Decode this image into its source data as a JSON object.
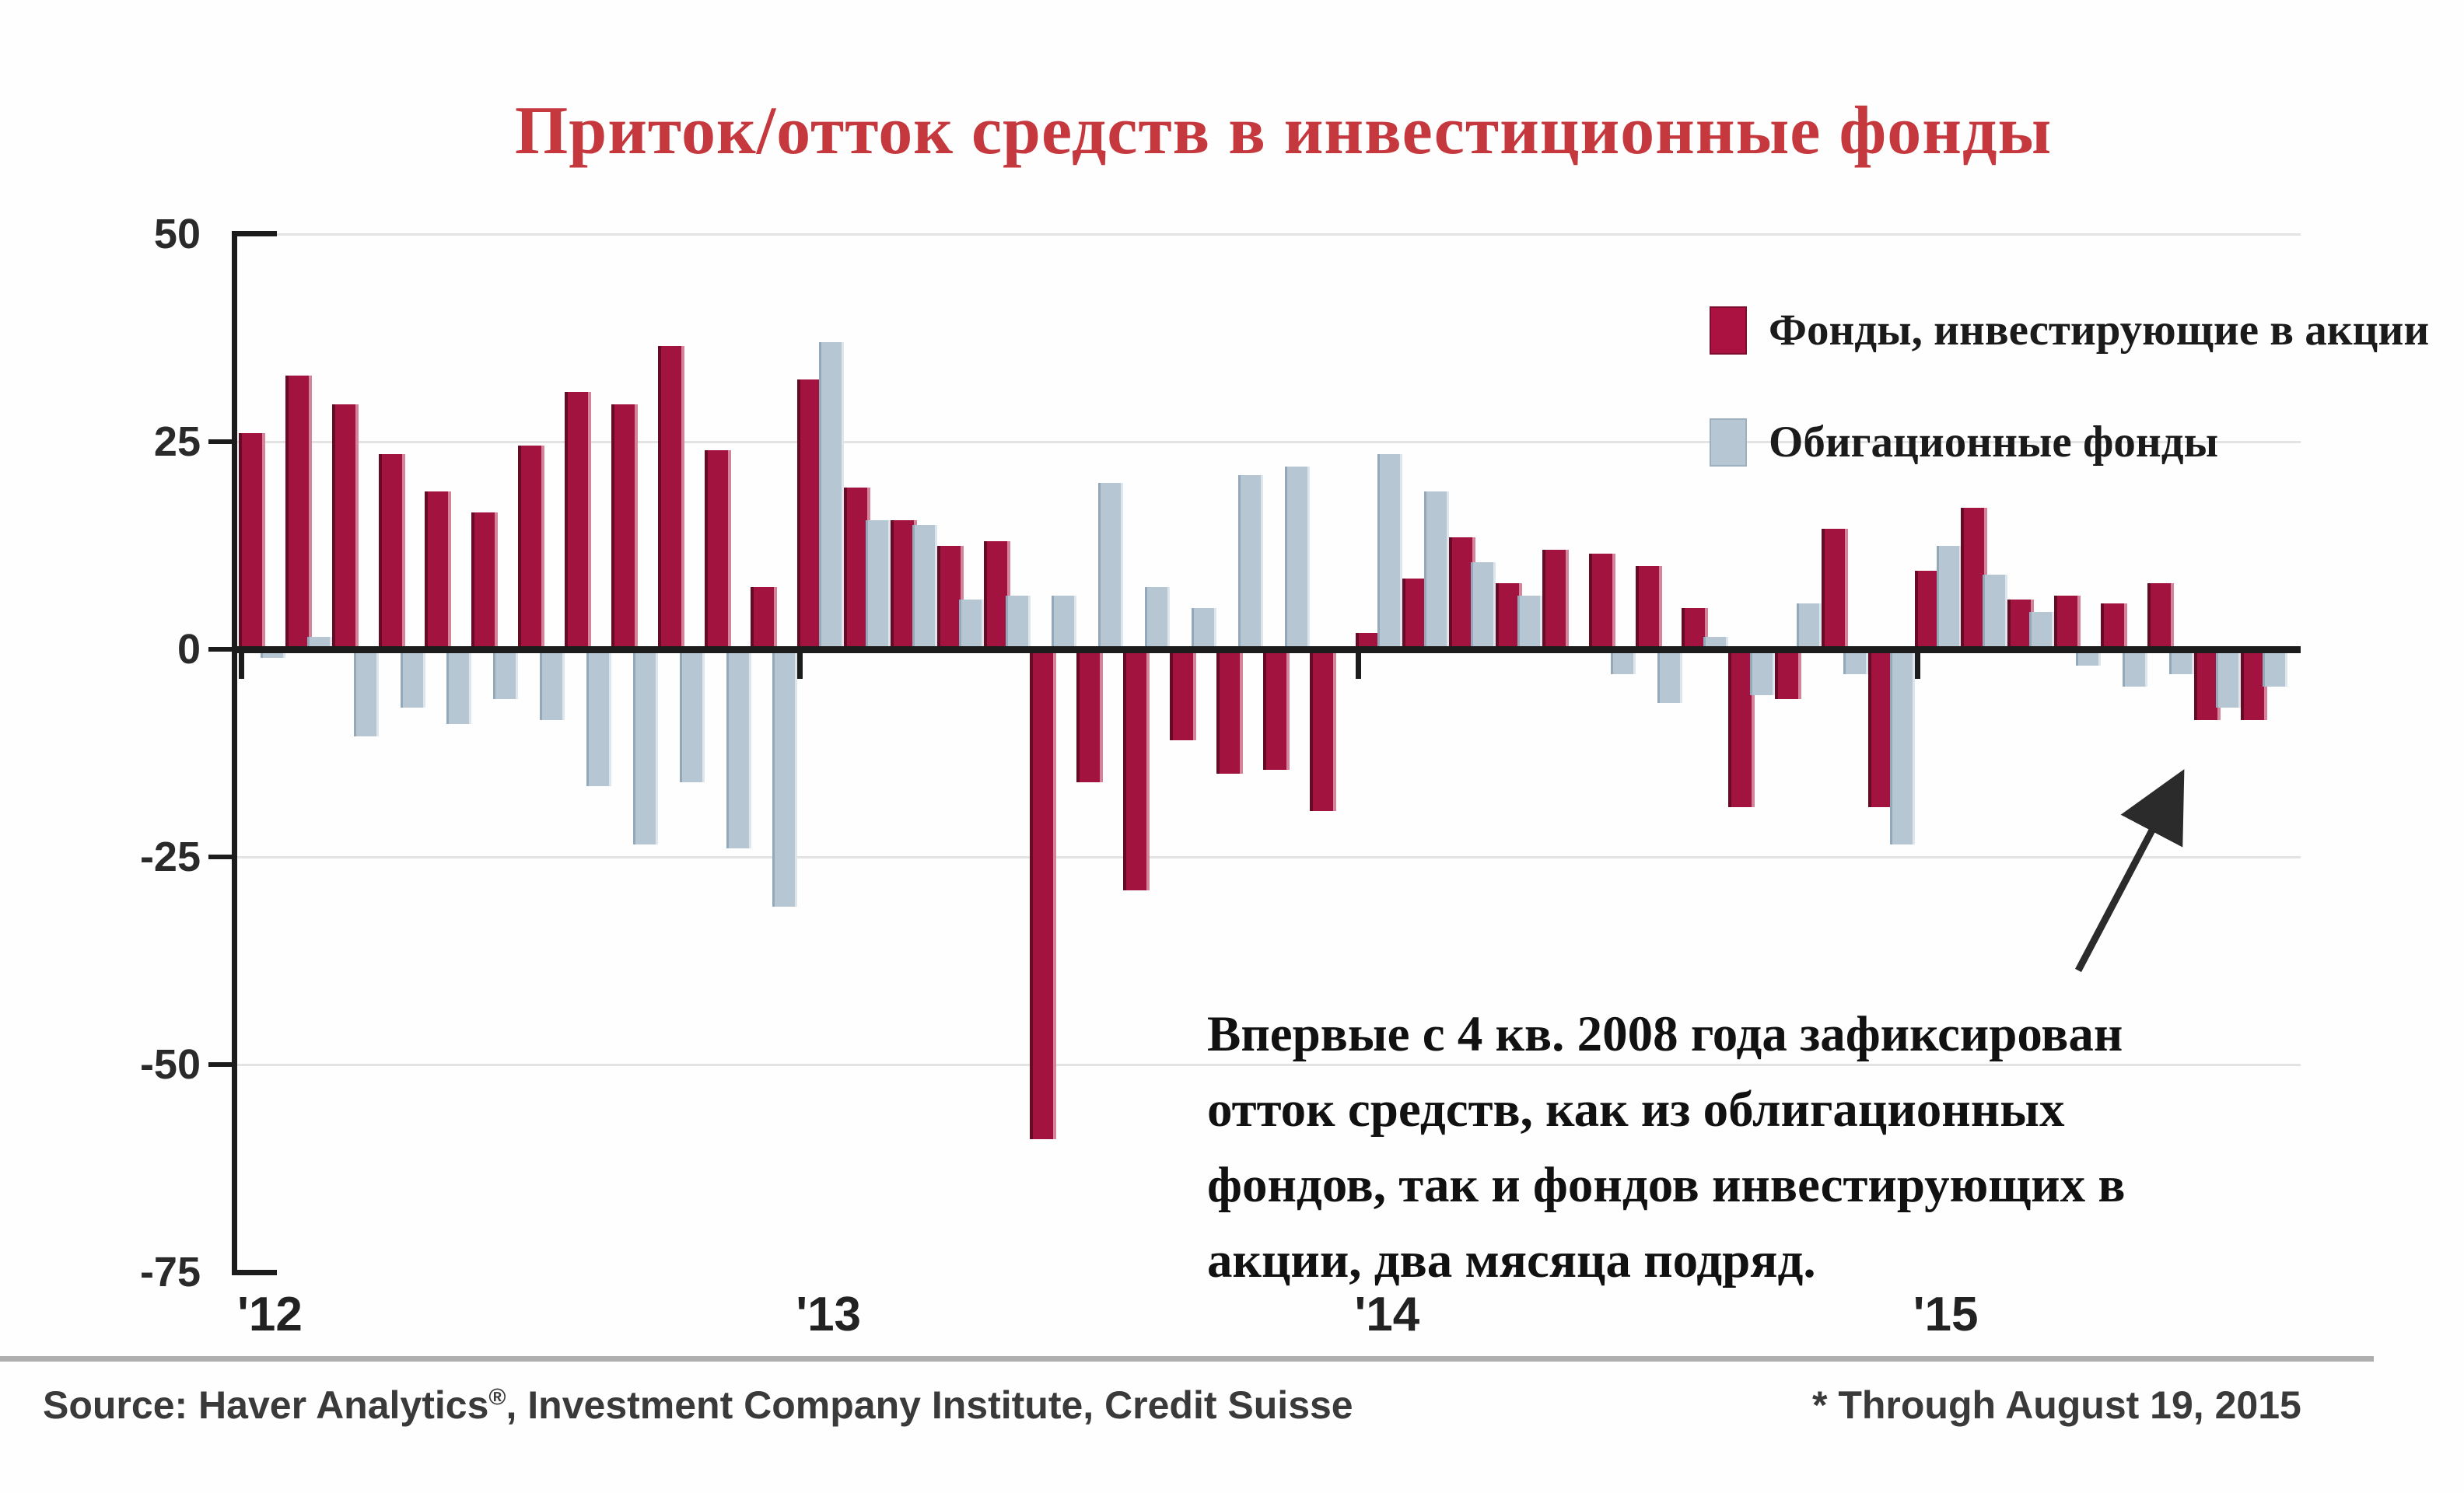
{
  "title": "Приток/отток средств в инвестиционные фонды",
  "legend": {
    "equity_label": "Фонды, инвестирующие в акции",
    "bond_label": "Обигационные фонды"
  },
  "annotation": {
    "lines": [
      "Впервые с 4 кв. 2008 года зафиксирован",
      "отток средств, как из облигационных",
      "фондов, так и фондов инвестирующих в",
      "акции, два мясяца подряд."
    ]
  },
  "footer": {
    "source_prefix": "Source: Haver Analytics",
    "source_reg": "®",
    "source_suffix": ", Investment Company Institute, Credit Suisse",
    "note": "* Through August 19, 2015"
  },
  "colors": {
    "title_red": "#c5383e",
    "equity_bar": "#a21340",
    "bond_bar": "#b7c6d3",
    "axis": "#1c1c1c",
    "gridline": "#e3e3e3"
  },
  "chart_data": {
    "type": "bar",
    "title": "Приток/отток средств в инвестиционные фонды",
    "x_unit": "month",
    "x_start": "2012-01",
    "x_end": "2015-08",
    "year_tick_labels": [
      "'12",
      "'13",
      "'14",
      "'15"
    ],
    "y_tick_labels": [
      "50",
      "25",
      "0",
      "-25",
      "-50",
      "-75"
    ],
    "y_tick_values": [
      50,
      25,
      0,
      -25,
      -50,
      -75
    ],
    "gridline_values": [
      50,
      25,
      -25,
      -50
    ],
    "ylim": [
      -75,
      50
    ],
    "legend_position": "top-right",
    "series": [
      {
        "name": "Фонды, инвестирующие в акции",
        "color": "#a21340",
        "values": [
          26,
          33,
          29.5,
          23.5,
          19,
          16.5,
          24.5,
          31,
          29.5,
          36.5,
          24,
          7.5,
          32.5,
          19.5,
          15.5,
          12.5,
          13,
          -59,
          -16,
          -29,
          -11,
          -15,
          -14.5,
          -19.5,
          2,
          8.5,
          13.5,
          8,
          12,
          11.5,
          10,
          5,
          -19,
          -6,
          14.5,
          -19,
          9.5,
          17,
          6,
          6.5,
          5.5,
          8,
          -8.5,
          -8.5
        ]
      },
      {
        "name": "Обигационные фонды",
        "color": "#b7c6d3",
        "values": [
          -1,
          1.5,
          -10.5,
          -7,
          -9,
          -6,
          -8.5,
          -16.5,
          -23.5,
          -16,
          -24,
          -31,
          37,
          15.5,
          15,
          6,
          6.5,
          6.5,
          20,
          7.5,
          5,
          21,
          22,
          0,
          23.5,
          19,
          10.5,
          6.5,
          0,
          -3,
          -6.5,
          1.5,
          -5.5,
          5.5,
          -3,
          -23.5,
          12.5,
          9,
          4.5,
          -2,
          -4.5,
          -3,
          -7,
          -4.5
        ]
      }
    ]
  }
}
